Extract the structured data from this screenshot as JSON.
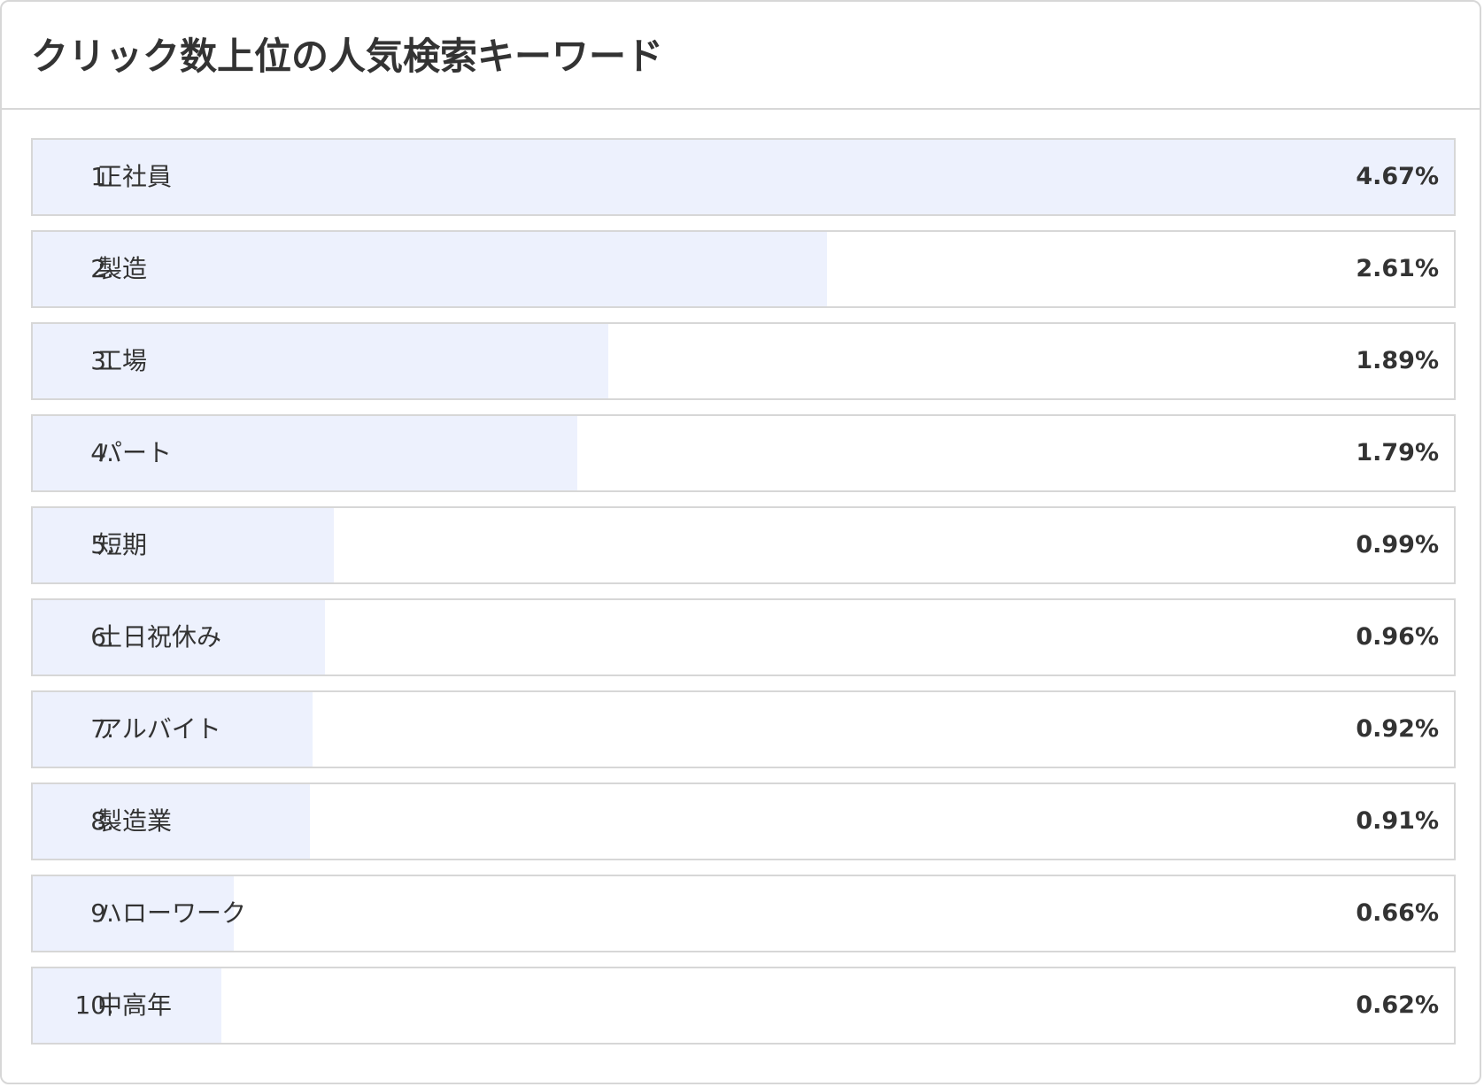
{
  "header": {
    "title": "クリック数上位の人気検索キーワード"
  },
  "colors": {
    "bar_fill": "#edf1fd",
    "row_border": "#d7d7d7",
    "text": "#333333"
  },
  "chart_data": {
    "type": "bar",
    "orientation": "horizontal",
    "title": "クリック数上位の人気検索キーワード",
    "ranks": [
      "1.",
      "2.",
      "3.",
      "4.",
      "5.",
      "6.",
      "7.",
      "8.",
      "9.",
      "10."
    ],
    "categories": [
      "正社員",
      "製造",
      "工場",
      "パート",
      "短期",
      "土日祝休み",
      "アルバイト",
      "製造業",
      "ハローワーク",
      "中高年"
    ],
    "values": [
      4.67,
      2.61,
      1.89,
      1.79,
      0.99,
      0.96,
      0.92,
      0.91,
      0.66,
      0.62
    ],
    "value_labels": [
      "4.67%",
      "2.61%",
      "1.89%",
      "1.79%",
      "0.99%",
      "0.96%",
      "0.92%",
      "0.91%",
      "0.66%",
      "0.62%"
    ],
    "unit": "%",
    "xlim": [
      0,
      4.67
    ],
    "grid": false
  }
}
